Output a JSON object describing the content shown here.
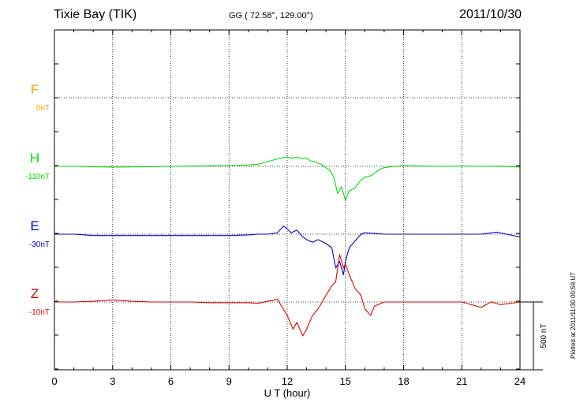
{
  "header": {
    "station": "Tixie Bay (TIK)",
    "coords": "GG ( 72.58°, 129.00°)",
    "date": "2011/10/30"
  },
  "footer": {
    "plotted": "Plotted at 2011/11/30 00:59 UT"
  },
  "chart_data": {
    "type": "line",
    "title": "Tixie Bay (TIK)",
    "xlabel": "U T (hour)",
    "ylabel": "",
    "xlim": [
      0,
      24
    ],
    "x_ticks": [
      "0",
      "3",
      "6",
      "9",
      "12",
      "15",
      "18",
      "21",
      "24"
    ],
    "scale_bar": "500 nT",
    "grid": true,
    "series": [
      {
        "name": "F",
        "baseline_label": "0nT",
        "color": "#ffa500",
        "x": [],
        "values": []
      },
      {
        "name": "H",
        "baseline_label": "-110nT",
        "color": "#00dd00",
        "x": [
          0,
          1,
          2,
          3,
          4,
          5,
          6,
          7,
          8,
          9,
          10,
          10.5,
          11,
          11.5,
          11.8,
          12,
          12.2,
          12.5,
          12.8,
          13,
          13.2,
          13.5,
          13.8,
          14,
          14.2,
          14.4,
          14.6,
          14.8,
          15,
          15.2,
          15.5,
          15.8,
          16,
          16.3,
          16.5,
          16.8,
          17,
          17.5,
          18,
          19,
          20,
          21,
          22,
          23,
          24
        ],
        "values": [
          0,
          0,
          -3,
          -5,
          -4,
          -2,
          0,
          2,
          4,
          6,
          10,
          15,
          35,
          55,
          65,
          70,
          60,
          68,
          55,
          60,
          40,
          30,
          10,
          -10,
          -30,
          -80,
          -200,
          -150,
          -250,
          -180,
          -160,
          -100,
          -80,
          -70,
          -50,
          -20,
          -10,
          0,
          5,
          2,
          0,
          3,
          0,
          2,
          -5
        ]
      },
      {
        "name": "E",
        "baseline_label": "-30nT",
        "color": "#0000cc",
        "x": [
          0,
          1,
          2,
          3,
          4,
          5,
          6,
          7,
          8,
          9,
          10,
          10.5,
          11,
          11.5,
          11.8,
          12,
          12.2,
          12.5,
          12.8,
          13,
          13.3,
          13.6,
          14,
          14.3,
          14.5,
          14.7,
          14.9,
          15,
          15.2,
          15.5,
          15.8,
          16,
          16.5,
          17,
          18,
          19,
          20,
          21,
          22,
          22.8,
          23.3,
          24
        ],
        "values": [
          0,
          0,
          -10,
          -10,
          -10,
          -10,
          -10,
          -10,
          -10,
          -10,
          -5,
          0,
          0,
          10,
          60,
          40,
          10,
          30,
          -20,
          -40,
          -60,
          -40,
          -70,
          -100,
          -250,
          -200,
          -300,
          -200,
          -100,
          -50,
          0,
          10,
          5,
          0,
          0,
          0,
          0,
          0,
          0,
          15,
          0,
          -20
        ]
      },
      {
        "name": "Z",
        "baseline_label": "-10nT",
        "color": "#dd0000",
        "x": [
          0,
          1,
          2,
          3,
          4,
          5,
          6,
          7,
          8,
          9,
          10,
          10.5,
          11,
          11.5,
          12,
          12.3,
          12.5,
          12.8,
          13,
          13.3,
          13.6,
          14,
          14.3,
          14.5,
          14.7,
          14.9,
          15,
          15.2,
          15.5,
          15.8,
          16,
          16.3,
          16.5,
          17,
          18,
          19,
          20,
          21,
          22,
          22.5,
          23,
          24
        ],
        "values": [
          0,
          0,
          5,
          15,
          5,
          0,
          0,
          0,
          -5,
          -5,
          -5,
          -10,
          5,
          20,
          -100,
          -200,
          -150,
          -250,
          -200,
          -100,
          -50,
          50,
          120,
          150,
          350,
          250,
          280,
          200,
          100,
          50,
          -50,
          -100,
          -30,
          0,
          0,
          0,
          0,
          0,
          -40,
          0,
          -20,
          0
        ]
      }
    ]
  }
}
